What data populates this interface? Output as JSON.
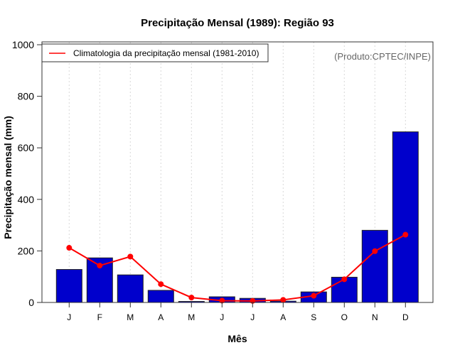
{
  "chart_data": {
    "type": "bar",
    "title": "Precipitação Mensal (1989): Região 93",
    "xlabel": "Mês",
    "ylabel": "Precipitação mensal (mm)",
    "ylim": [
      0,
      1000
    ],
    "yticks": [
      0,
      200,
      400,
      600,
      800,
      1000
    ],
    "categories": [
      "J",
      "F",
      "M",
      "A",
      "M",
      "J",
      "J",
      "A",
      "S",
      "O",
      "N",
      "D"
    ],
    "grid": "vertical-dotted",
    "annotation": "(Produto:CPTEC/INPE)",
    "legend": {
      "position": "top-left",
      "entries": [
        "Climatologia da precipitação mensal (1981-2010)"
      ]
    },
    "series": [
      {
        "name": "Precipitação mensal 1989",
        "type": "bar",
        "color": "#0000cc",
        "values": [
          128,
          173,
          107,
          47,
          4,
          22,
          16,
          5,
          41,
          98,
          280,
          662
        ]
      },
      {
        "name": "Climatologia da precipitação mensal (1981-2010)",
        "type": "line",
        "color": "#ff0000",
        "values": [
          212,
          143,
          178,
          71,
          19,
          7,
          6,
          10,
          26,
          90,
          199,
          263
        ]
      }
    ]
  }
}
